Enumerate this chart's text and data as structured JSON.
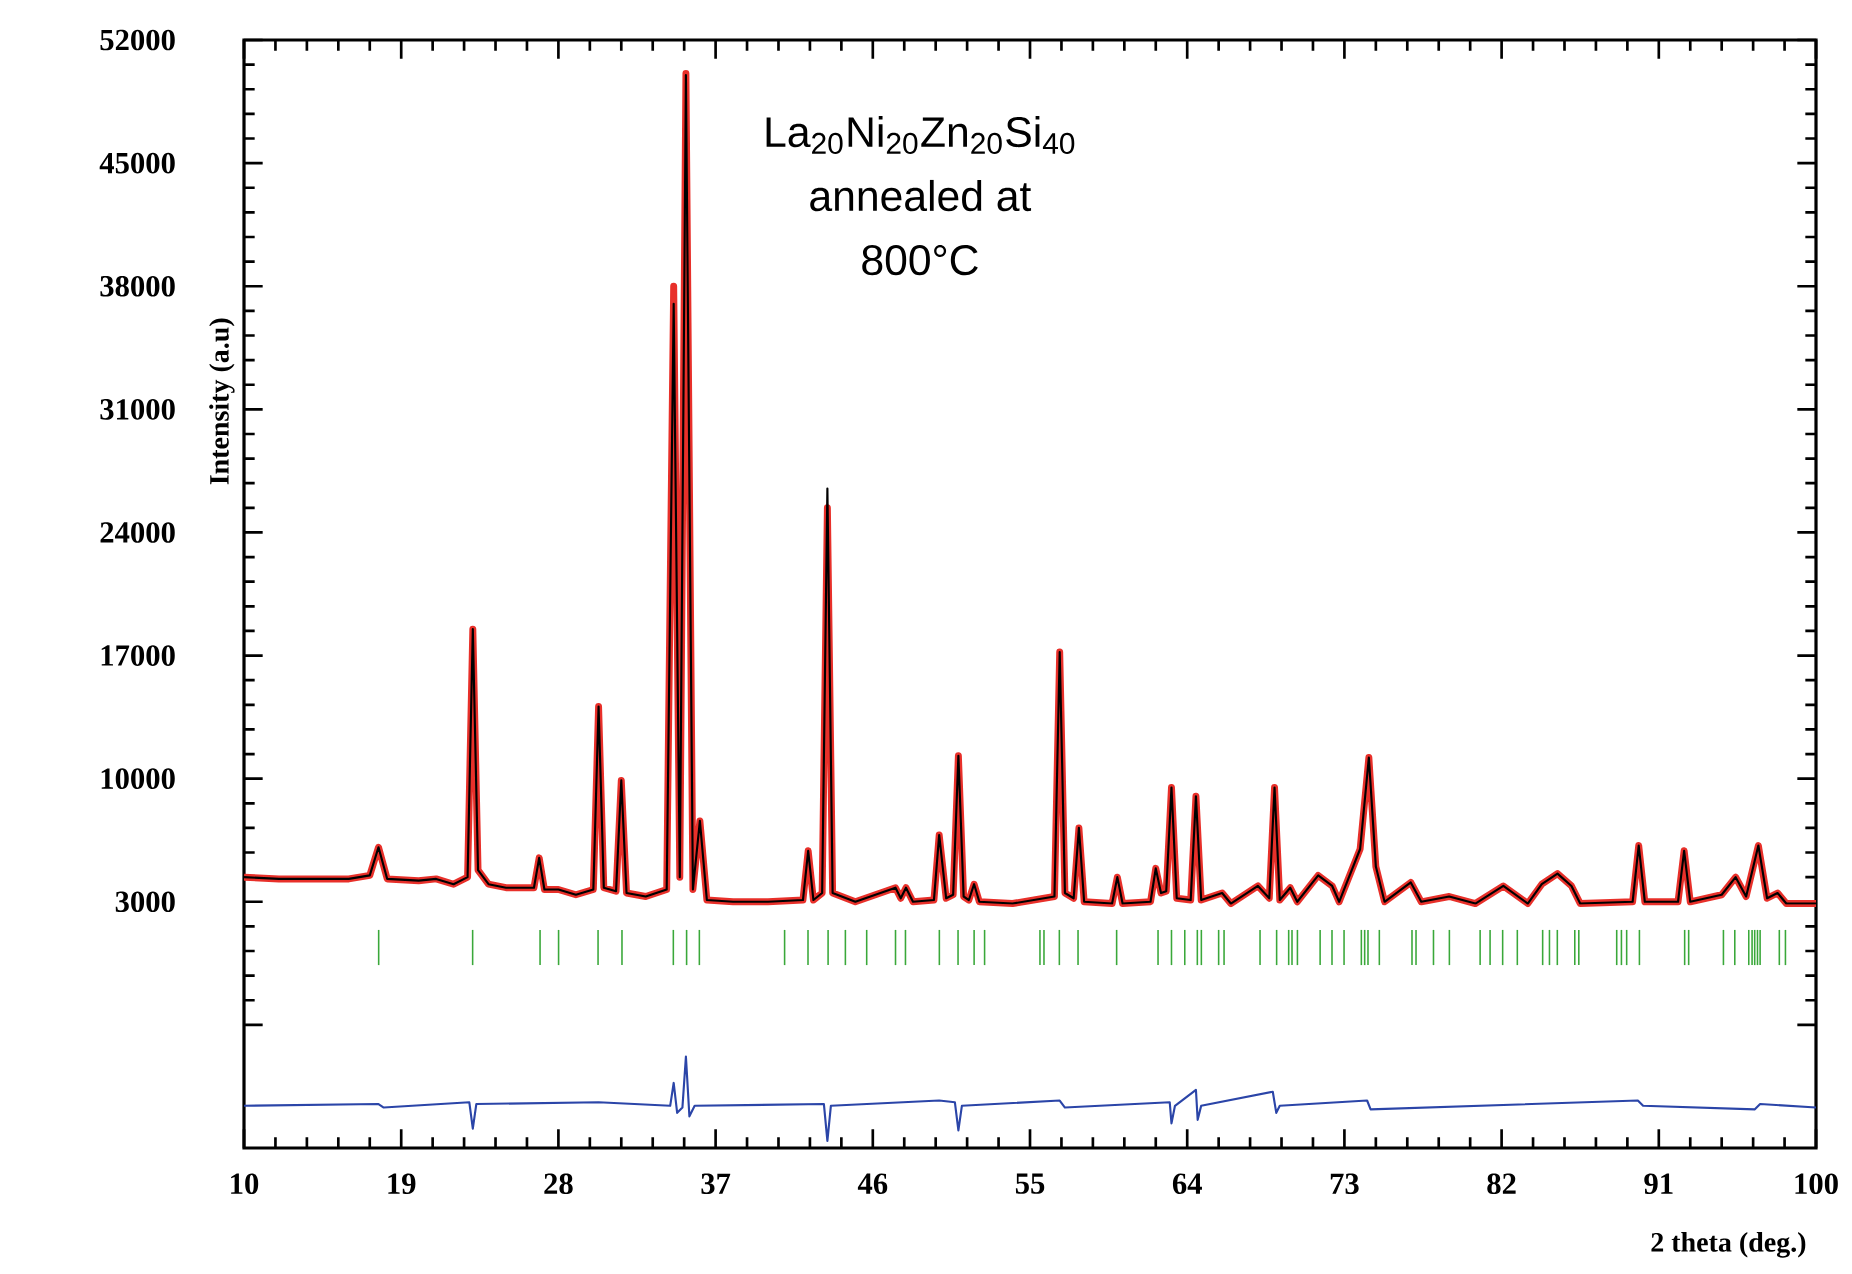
{
  "chart_data": {
    "type": "line",
    "xlabel": "2 theta (deg.)",
    "ylabel": "Intensity (a.u)",
    "annotations": [
      "La$_{20}$Ni$_{20}$Zn$_{20}$Si$_{40}$",
      "annealed at",
      "800°C"
    ],
    "xlim": [
      10,
      100
    ],
    "ylim": [
      -11000,
      52000
    ],
    "xticks": [
      10,
      19,
      28,
      37,
      46,
      55,
      64,
      73,
      82,
      91,
      100
    ],
    "yticks": [
      {
        "value": -4000,
        "label": null
      },
      3000,
      10000,
      17000,
      24000,
      31000,
      38000,
      45000,
      52000
    ],
    "x": [
      10,
      12,
      14,
      16,
      17.2,
      17.7,
      18.2,
      20,
      21,
      22,
      22.8,
      23.1,
      23.4,
      24,
      25,
      26.6,
      26.9,
      27.2,
      28,
      29,
      30.0,
      30.3,
      30.6,
      31.3,
      31.6,
      31.9,
      33,
      34.2,
      34.6,
      34.95,
      35.3,
      35.7,
      36.1,
      36.5,
      38,
      40,
      42.0,
      42.3,
      42.6,
      43.1,
      43.4,
      43.7,
      45,
      47.3,
      47.6,
      47.9,
      48.3,
      49.5,
      49.8,
      50.2,
      50.6,
      50.9,
      51.2,
      51.5,
      51.8,
      52.1,
      54,
      56.4,
      56.7,
      57.0,
      57.5,
      57.8,
      58.1,
      59.7,
      60.0,
      60.3,
      61.9,
      62.2,
      62.5,
      62.8,
      63.1,
      63.4,
      64.2,
      64.5,
      64.8,
      66.0,
      66.5,
      68.05,
      68.7,
      69.0,
      69.3,
      69.9,
      70.3,
      71.5,
      72.3,
      72.7,
      73.9,
      74.4,
      74.8,
      75.3,
      76.8,
      77.4,
      79.0,
      80.5,
      82.1,
      83.5,
      84.3,
      85.2,
      86.0,
      86.5,
      89.5,
      89.85,
      90.2,
      92.1,
      92.45,
      92.8,
      94.6,
      95.4,
      96.0,
      96.7,
      97.2,
      97.8,
      98.3,
      100
    ],
    "series": [
      {
        "type": "line",
        "color": "#e8302a",
        "values": [
          4400,
          4300,
          4300,
          4300,
          4500,
          6100,
          4300,
          4200,
          4300,
          4000,
          4400,
          18500,
          4800,
          4000,
          3800,
          3800,
          5500,
          3700,
          3700,
          3400,
          3700,
          14100,
          3800,
          3600,
          9900,
          3500,
          3300,
          3700,
          38000,
          4400,
          50100,
          3700,
          7600,
          3100,
          3000,
          3000,
          3100,
          5900,
          3100,
          3500,
          25400,
          3500,
          3000,
          3800,
          3200,
          3800,
          3000,
          3100,
          6800,
          3200,
          3400,
          11300,
          3300,
          3100,
          4000,
          3000,
          2900,
          3300,
          17200,
          3500,
          3200,
          7200,
          3000,
          2900,
          4400,
          2900,
          3000,
          4900,
          3500,
          3600,
          9500,
          3200,
          3100,
          9000,
          3100,
          3500,
          2900,
          3900,
          3200,
          9500,
          3100,
          3800,
          3000,
          4500,
          3900,
          3000,
          6000,
          11200,
          5000,
          3000,
          4100,
          3000,
          3300,
          2900,
          3900,
          2900,
          4000,
          4600,
          3900,
          2900,
          3000,
          6200,
          3000,
          3000,
          5900,
          3000,
          3400,
          4400,
          3300,
          6200,
          3200,
          3500,
          2900,
          2900
        ]
      },
      {
        "color": "#000000",
        "values": [
          4400,
          4300,
          4300,
          4300,
          4500,
          6100,
          4300,
          4200,
          4300,
          4000,
          4400,
          18500,
          4800,
          4000,
          3800,
          3800,
          5500,
          3700,
          3700,
          3400,
          3700,
          14100,
          3800,
          3600,
          9900,
          3500,
          3300,
          3700,
          37000,
          4400,
          50000,
          3700,
          7600,
          3100,
          3000,
          3000,
          3100,
          5900,
          3100,
          3500,
          26500,
          3500,
          3000,
          3800,
          3200,
          3800,
          3000,
          3100,
          6800,
          3200,
          3400,
          11300,
          3300,
          3100,
          4000,
          3000,
          2900,
          3300,
          17200,
          3500,
          3200,
          7200,
          3000,
          2900,
          4400,
          2900,
          3000,
          4900,
          3500,
          3600,
          9500,
          3200,
          3100,
          9000,
          3100,
          3500,
          2900,
          3900,
          3200,
          9500,
          3100,
          3800,
          3000,
          4500,
          3900,
          3000,
          6000,
          11200,
          5000,
          3000,
          4100,
          3000,
          3300,
          2900,
          3900,
          2900,
          4000,
          4600,
          3900,
          2900,
          3000,
          6200,
          3000,
          3000,
          5900,
          3000,
          3400,
          4400,
          3300,
          6200,
          3200,
          3500,
          2900,
          2900
        ]
      },
      {
        "type": "bar",
        "color": "#3aa83a",
        "x": [
          17.71,
          23.09,
          26.95,
          28.01,
          30.27,
          31.64,
          34.58,
          35.34,
          36.07,
          40.95,
          42.29,
          43.44,
          44.43,
          45.65,
          47.3,
          47.87,
          49.81,
          50.88,
          51.8,
          52.4,
          55.57,
          55.8,
          56.68,
          57.75,
          59.96,
          62.33,
          63.1,
          63.86,
          64.58,
          64.81,
          65.8,
          66.11,
          68.17,
          69.12,
          69.81,
          70.0,
          70.31,
          71.61,
          72.29,
          72.98,
          73.97,
          74.16,
          74.35,
          75.0,
          76.87,
          77.1,
          78.1,
          79.01,
          80.77,
          81.34,
          82.06,
          82.9,
          84.35,
          84.74,
          85.19,
          86.19,
          86.42,
          88.59,
          88.86,
          89.16,
          89.89,
          92.48,
          92.71,
          94.7,
          95.35,
          96.15,
          96.34,
          96.49,
          96.65,
          96.8,
          97.9,
          98.25
        ],
        "base": [
          -600,
          -600,
          -600,
          -600,
          -600,
          -600,
          -600,
          -600,
          -600,
          -600,
          -600,
          -600,
          -600,
          -600,
          -600,
          -600,
          -600,
          -600,
          -600,
          -600,
          -600,
          -600,
          -600,
          -600,
          -600,
          -600,
          -600,
          -600,
          -600,
          -600,
          -600,
          -600,
          -600,
          -600,
          -600,
          -600,
          -600,
          -600,
          -600,
          -600,
          -600,
          -600,
          -600,
          -600,
          -600,
          -600,
          -600,
          -600,
          -600,
          -600,
          -600,
          -600,
          -600,
          -600,
          -600,
          -600,
          -600,
          -600,
          -600,
          -600,
          -600,
          -600,
          -600,
          -600,
          -600,
          -600,
          -600,
          -600,
          -600,
          -600,
          -600,
          -600
        ],
        "values": [
          2000,
          2000,
          2000,
          2000,
          2000,
          2000,
          2000,
          2000,
          2000,
          2000,
          2000,
          2000,
          2000,
          2000,
          2000,
          2000,
          2000,
          2000,
          2000,
          2000,
          2000,
          2000,
          2000,
          2000,
          2000,
          2000,
          2000,
          2000,
          2000,
          2000,
          2000,
          2000,
          2000,
          2000,
          2000,
          2000,
          2000,
          2000,
          2000,
          2000,
          2000,
          2000,
          2000,
          2000,
          2000,
          2000,
          2000,
          2000,
          2000,
          2000,
          2000,
          2000,
          2000,
          2000,
          2000,
          2000,
          2000,
          2000,
          2000,
          2000,
          2000,
          2000,
          2000,
          2000,
          2000,
          2000,
          2000,
          2000,
          2000,
          2000,
          2000,
          2000
        ]
      },
      {
        "type": "line",
        "color": "#2b45a8",
        "x": [
          10,
          17.7,
          18,
          22.9,
          23.1,
          23.3,
          30.3,
          34.4,
          34.6,
          34.8,
          35.1,
          35.3,
          35.5,
          35.8,
          43.2,
          43.4,
          43.6,
          49.8,
          50.7,
          50.9,
          51.1,
          56.7,
          57,
          63.0,
          63.1,
          63.3,
          64.5,
          64.6,
          64.8,
          68.9,
          69.1,
          69.3,
          74.3,
          74.5,
          89.8,
          90.1,
          96.5,
          96.8,
          100
        ],
        "values": [
          -8600,
          -8500,
          -8700,
          -8400,
          -9900,
          -8500,
          -8400,
          -8600,
          -7300,
          -9000,
          -8700,
          -5800,
          -9200,
          -8600,
          -8500,
          -10600,
          -8600,
          -8300,
          -8400,
          -10000,
          -8600,
          -8300,
          -8700,
          -8400,
          -9600,
          -8600,
          -7700,
          -9400,
          -8600,
          -7800,
          -9000,
          -8600,
          -8300,
          -8800,
          -8300,
          -8600,
          -8800,
          -8500,
          -8700
        ]
      }
    ]
  }
}
